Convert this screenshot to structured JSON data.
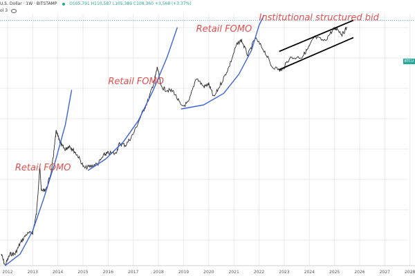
{
  "header": {
    "symbol": "U.S. Dollar · 1W · BITSTAMP",
    "ohlc": "O105,791 H110,587 L105,389 C109,360 +3,568 (+3.37%)",
    "sub": "ol 3"
  },
  "price_tag": "BTCU",
  "colors": {
    "price": "#2b2b2b",
    "curve": "#3b63d6",
    "annotation": "#e0504f",
    "channel": "#000000",
    "grid": "#e9e9e9",
    "dotted": "#26a69a"
  },
  "chart_data": {
    "type": "line",
    "title": "",
    "xlabel": "",
    "ylabel": "",
    "log_scale": true,
    "grid": true,
    "x_ticks": [
      "2012",
      "2013",
      "2014",
      "2015",
      "2016",
      "2017",
      "2018",
      "2019",
      "2020",
      "2021",
      "2022",
      "2023",
      "2024",
      "2025",
      "2026",
      "2027",
      "2028"
    ],
    "xlim": [
      2011.7,
      2028.2
    ],
    "ylim": [
      3,
      200000
    ],
    "series": [
      {
        "values": [
          [
            2011.75,
            5
          ],
          [
            2011.9,
            3
          ],
          [
            2012.1,
            5
          ],
          [
            2012.3,
            5
          ],
          [
            2012.5,
            8
          ],
          [
            2012.75,
            12
          ],
          [
            2013.0,
            13
          ],
          [
            2013.15,
            30
          ],
          [
            2013.28,
            230
          ],
          [
            2013.35,
            80
          ],
          [
            2013.55,
            90
          ],
          [
            2013.75,
            200
          ],
          [
            2013.85,
            500
          ],
          [
            2013.93,
            1100
          ],
          [
            2014.05,
            800
          ],
          [
            2014.15,
            600
          ],
          [
            2014.3,
            500
          ],
          [
            2014.45,
            600
          ],
          [
            2014.6,
            500
          ],
          [
            2014.8,
            380
          ],
          [
            2015.05,
            220
          ],
          [
            2015.3,
            240
          ],
          [
            2015.6,
            270
          ],
          [
            2015.85,
            400
          ],
          [
            2016.0,
            430
          ],
          [
            2016.3,
            420
          ],
          [
            2016.45,
            650
          ],
          [
            2016.7,
            610
          ],
          [
            2017.0,
            1000
          ],
          [
            2017.35,
            2500
          ],
          [
            2017.6,
            4500
          ],
          [
            2017.85,
            11000
          ],
          [
            2017.96,
            19000
          ],
          [
            2018.1,
            8000
          ],
          [
            2018.3,
            7000
          ],
          [
            2018.6,
            6500
          ],
          [
            2018.92,
            3300
          ],
          [
            2019.2,
            4000
          ],
          [
            2019.5,
            12000
          ],
          [
            2019.8,
            8000
          ],
          [
            2020.0,
            9000
          ],
          [
            2020.2,
            5000
          ],
          [
            2020.5,
            9500
          ],
          [
            2020.8,
            19000
          ],
          [
            2021.1,
            50000
          ],
          [
            2021.3,
            63000
          ],
          [
            2021.55,
            32000
          ],
          [
            2021.85,
            68000
          ],
          [
            2022.2,
            40000
          ],
          [
            2022.5,
            20000
          ],
          [
            2022.9,
            16000
          ],
          [
            2023.2,
            28000
          ],
          [
            2023.7,
            30000
          ],
          [
            2023.95,
            43000
          ],
          [
            2024.2,
            72000
          ],
          [
            2024.6,
            60000
          ],
          [
            2024.95,
            100000
          ],
          [
            2025.1,
            106000
          ],
          [
            2025.3,
            80000
          ],
          [
            2025.5,
            110000
          ]
        ]
      }
    ],
    "annotations": [
      {
        "text": "Retail FOMO",
        "x": 2012.3,
        "y": 200
      },
      {
        "text": "Retail FOMO",
        "x": 2016.0,
        "y": 9000
      },
      {
        "text": "Retail FOMO",
        "x": 2019.5,
        "y": 90000
      },
      {
        "text": "Institutional structured bid",
        "x": 2022.0,
        "y": 150000
      }
    ],
    "growth_curves": [
      [
        [
          2011.9,
          3
        ],
        [
          2012.5,
          5
        ],
        [
          2013.0,
          14
        ],
        [
          2013.45,
          60
        ],
        [
          2013.9,
          300
        ],
        [
          2014.3,
          1500
        ],
        [
          2014.55,
          7000
        ]
      ],
      [
        [
          2015.2,
          200
        ],
        [
          2015.9,
          330
        ],
        [
          2016.6,
          700
        ],
        [
          2017.2,
          1800
        ],
        [
          2017.8,
          7000
        ],
        [
          2018.35,
          30000
        ],
        [
          2018.75,
          110000
        ]
      ],
      [
        [
          2018.9,
          3000
        ],
        [
          2019.8,
          3600
        ],
        [
          2020.6,
          6000
        ],
        [
          2021.2,
          14000
        ],
        [
          2021.7,
          40000
        ],
        [
          2022.0,
          120000
        ],
        [
          2022.2,
          190000
        ]
      ]
    ],
    "channel": {
      "upper": [
        [
          2022.8,
          38000
        ],
        [
          2025.75,
          150000
        ]
      ],
      "lower": [
        [
          2022.8,
          17000
        ],
        [
          2025.75,
          70000
        ]
      ]
    }
  }
}
